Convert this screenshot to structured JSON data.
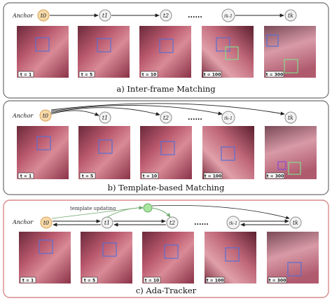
{
  "colors": {
    "panel_border_a": "#6e6e6e",
    "panel_border_b": "#6e6e6e",
    "panel_border_c": "#d98a8a",
    "anchor_fill": "#f7d9a8",
    "anchor_stroke": "#d9a35c",
    "node_fill": "#f2f2f2",
    "node_stroke": "#8c8c8c",
    "blue_box": "#5a6fd0",
    "green_box": "#86d98c",
    "green_node": "#a8e6a0"
  },
  "panels": [
    {
      "caption": "a) Inter-frame Matching",
      "anchor_label": "Anchor",
      "nodes": [
        "t0",
        "t1",
        "t2",
        "tk-1",
        "tk"
      ],
      "dots": "......",
      "frames": [
        {
          "t_label": "t = 1"
        },
        {
          "t_label": "t = 5"
        },
        {
          "t_label": "t = 10"
        },
        {
          "t_label": "t = 100"
        },
        {
          "t_label": "t = 300"
        }
      ]
    },
    {
      "caption": "b) Template-based Matching",
      "anchor_label": "Anchor",
      "nodes": [
        "t0",
        "t1",
        "t2",
        "tk-1",
        "tk"
      ],
      "dots": "......",
      "frames": [
        {
          "t_label": "t = 1"
        },
        {
          "t_label": "t = 5"
        },
        {
          "t_label": "t = 10"
        },
        {
          "t_label": "t = 100"
        },
        {
          "t_label": "t = 300"
        }
      ]
    },
    {
      "caption": "c) Ada-Tracker",
      "anchor_label": "Anchor",
      "update_label": "template updating",
      "nodes": [
        "t0",
        "t1",
        "t2",
        "tk-1",
        "tk"
      ],
      "dots": "......",
      "frames": [
        {
          "t_label": "t = 1"
        },
        {
          "t_label": "t = 5"
        },
        {
          "t_label": "t = 10"
        },
        {
          "t_label": "t = 100"
        },
        {
          "t_label": "t = 300"
        }
      ]
    }
  ]
}
